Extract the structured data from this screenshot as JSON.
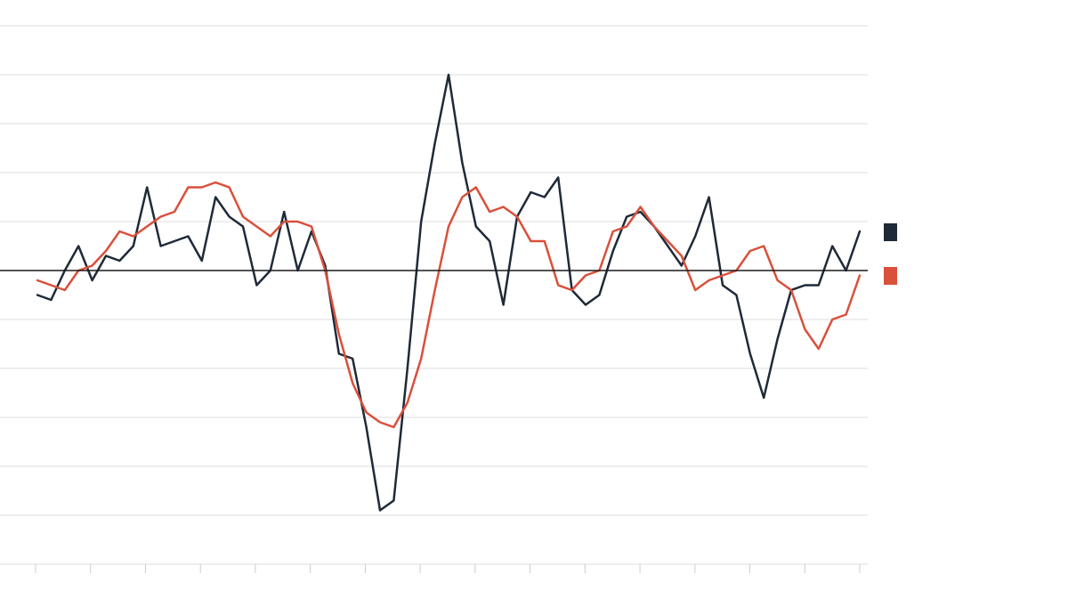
{
  "colors": {
    "series_dark": "#1f2a38",
    "series_red": "#d9503b",
    "grid": "#dddddd",
    "zero_line": "#1a1a1a"
  },
  "chart_data": {
    "type": "line",
    "title": "",
    "xlabel": "",
    "ylabel": "",
    "ylim": [
      -5.5,
      5.0
    ],
    "y_gridlines": [
      -5,
      -4,
      -3,
      -2,
      -1,
      0,
      1,
      2,
      3,
      4,
      5
    ],
    "zero_line": 0,
    "x_tick_count": 16,
    "legend": "right",
    "x": [
      0,
      1,
      2,
      3,
      4,
      5,
      6,
      7,
      8,
      9,
      10,
      11,
      12,
      13,
      14,
      15,
      16,
      17,
      18,
      19,
      20,
      21,
      22,
      23,
      24,
      25,
      26,
      27,
      28,
      29,
      30,
      31,
      32,
      33,
      34,
      35,
      36,
      37,
      38,
      39,
      40,
      41,
      42,
      43,
      44,
      45,
      46,
      47,
      48,
      49,
      50,
      51,
      52,
      53,
      54,
      55,
      56,
      57,
      58,
      59,
      60
    ],
    "series": [
      {
        "color": "#1f2a38",
        "values": [
          -0.5,
          -0.6,
          0.0,
          0.5,
          -0.2,
          0.3,
          0.2,
          0.5,
          1.7,
          0.5,
          0.6,
          0.7,
          0.2,
          1.5,
          1.1,
          0.9,
          -0.3,
          0.0,
          1.2,
          0.0,
          0.8,
          0.1,
          -1.7,
          -1.8,
          -3.2,
          -4.9,
          -4.7,
          -2.0,
          1.0,
          2.6,
          4.0,
          2.2,
          0.9,
          0.6,
          -0.7,
          1.1,
          1.6,
          1.5,
          1.9,
          -0.4,
          -0.7,
          -0.5,
          0.4,
          1.1,
          1.2,
          0.9,
          0.5,
          0.1,
          0.7,
          1.5,
          -0.3,
          -0.5,
          -1.7,
          -2.6,
          -1.4,
          -0.4,
          -0.3,
          -0.3,
          0.5,
          0.0,
          0.8
        ]
      },
      {
        "color": "#d9503b",
        "values": [
          -0.2,
          -0.3,
          -0.4,
          0.0,
          0.1,
          0.4,
          0.8,
          0.7,
          0.9,
          1.1,
          1.2,
          1.7,
          1.7,
          1.8,
          1.7,
          1.1,
          0.9,
          0.7,
          1.0,
          1.0,
          0.9,
          0.0,
          -1.3,
          -2.3,
          -2.9,
          -3.1,
          -3.2,
          -2.7,
          -1.8,
          -0.4,
          0.9,
          1.5,
          1.7,
          1.2,
          1.3,
          1.1,
          0.6,
          0.6,
          -0.3,
          -0.4,
          -0.1,
          0.0,
          0.8,
          0.9,
          1.3,
          0.9,
          0.6,
          0.3,
          -0.4,
          -0.2,
          -0.1,
          0.0,
          0.4,
          0.5,
          -0.2,
          -0.4,
          -1.2,
          -1.6,
          -1.0,
          -0.9,
          -0.1
        ]
      }
    ]
  }
}
